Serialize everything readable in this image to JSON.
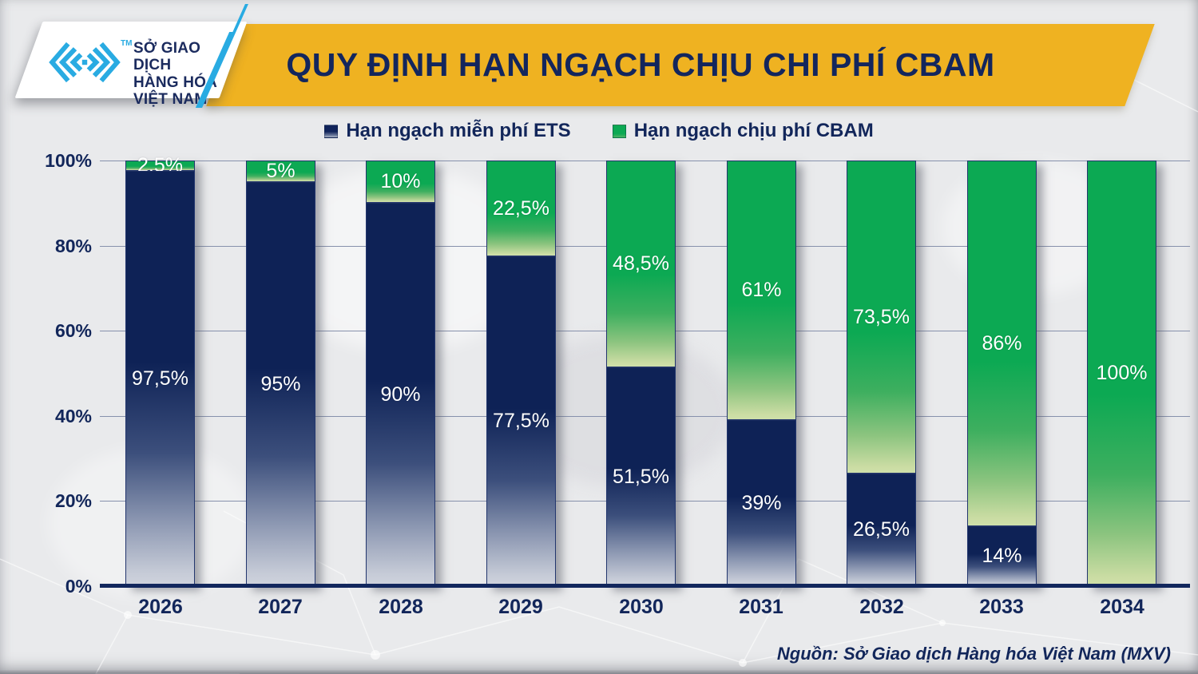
{
  "header": {
    "title": "QUY ĐỊNH HẠN NGẠCH CHỊU CHI PHÍ CBAM",
    "logo": {
      "tm": "TM",
      "lines": [
        "SỞ GIAO DỊCH",
        "HÀNG HÓA",
        "VIỆT NAM"
      ]
    }
  },
  "legend": [
    {
      "label": "Hạn ngạch miễn phí ETS",
      "color": "#10235a"
    },
    {
      "label": "Hạn ngạch chịu phí CBAM",
      "color": "#0ca953"
    }
  ],
  "chart_data": {
    "type": "bar",
    "stacked": true,
    "title": "QUY ĐỊNH HẠN NGẠCH CHỊU CHI PHÍ CBAM",
    "categories": [
      "2026",
      "2027",
      "2028",
      "2029",
      "2030",
      "2031",
      "2032",
      "2033",
      "2034"
    ],
    "series": [
      {
        "name": "Hạn ngạch miễn phí ETS",
        "color": "#0e2256",
        "values": [
          97.5,
          95,
          90,
          77.5,
          51.5,
          39,
          26.5,
          14,
          0
        ],
        "labels": [
          "97,5%",
          "95%",
          "90%",
          "77,5%",
          "51,5%",
          "39%",
          "26,5%",
          "14%",
          ""
        ]
      },
      {
        "name": "Hạn ngạch chịu phí CBAM",
        "color": "#0ca953",
        "values": [
          2.5,
          5,
          10,
          22.5,
          48.5,
          61,
          73.5,
          86,
          100
        ],
        "labels": [
          "2,5%",
          "5%",
          "10%",
          "22,5%",
          "48,5%",
          "61%",
          "73,5%",
          "86%",
          "100%"
        ]
      }
    ],
    "y_ticks": [
      "100%",
      "80%",
      "60%",
      "40%",
      "20%",
      "0%"
    ],
    "ylim": [
      0,
      100
    ],
    "grid": true,
    "legend_position": "top"
  },
  "source": "Nguồn: Sở Giao dịch Hàng hóa Việt Nam (MXV)",
  "colors": {
    "banner": "#efb221",
    "navy": "#12265a",
    "green": "#0ca953",
    "cyan": "#29abe2",
    "background": "#e9eaec"
  }
}
